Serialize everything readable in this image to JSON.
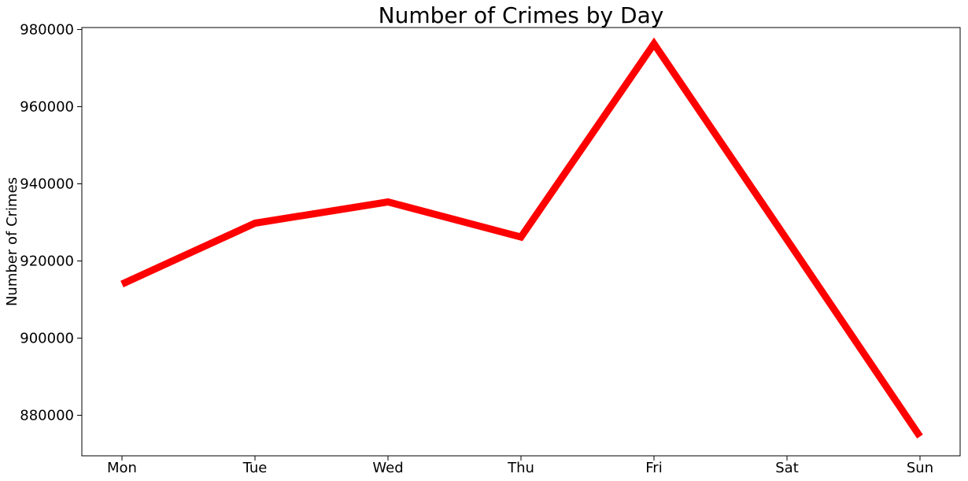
{
  "chart_data": {
    "type": "line",
    "title": "Number of Crimes by Day",
    "xlabel": "",
    "ylabel": "Number of Crimes",
    "categories": [
      "Mon",
      "Tue",
      "Wed",
      "Thu",
      "Fri",
      "Sat",
      "Sun"
    ],
    "series": [
      {
        "color": "#ff0000",
        "values": [
          914000,
          929800,
          935300,
          926200,
          976300,
          925500,
          874500
        ]
      }
    ],
    "ylim": [
      869500,
      980500
    ],
    "yticks": [
      880000,
      900000,
      920000,
      940000,
      960000,
      980000
    ],
    "ytick_labels": [
      "880000",
      "900000",
      "920000",
      "940000",
      "960000",
      "980000"
    ],
    "grid": false,
    "legend": "none"
  }
}
